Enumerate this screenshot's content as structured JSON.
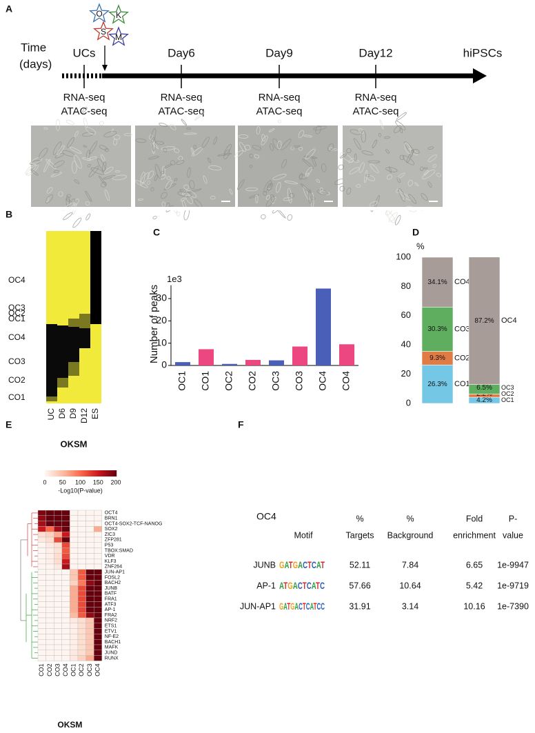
{
  "panel_labels": [
    "A",
    "B",
    "C",
    "D",
    "E",
    "F"
  ],
  "panel_a": {
    "time_label": [
      "Time",
      "(days)"
    ],
    "factors": [
      "O",
      "K",
      "S",
      "M"
    ],
    "stages": [
      {
        "label": "UCs",
        "assays": [
          "RNA-seq",
          "ATAC-seq"
        ]
      },
      {
        "label": "Day6",
        "assays": [
          "RNA-seq",
          "ATAC-seq"
        ]
      },
      {
        "label": "Day9",
        "assays": [
          "RNA-seq",
          "ATAC-seq"
        ]
      },
      {
        "label": "Day12",
        "assays": [
          "RNA-seq",
          "ATAC-seq"
        ]
      },
      {
        "label": "hiPSCs"
      }
    ]
  },
  "panel_b": {
    "rows": [
      "OC4",
      "OC3",
      "OC2",
      "OC1",
      "CO4",
      "CO3",
      "CO2",
      "CO1"
    ],
    "columns": [
      "UC",
      "D6",
      "D9",
      "D12",
      "ES"
    ],
    "xlabel": "OKSM"
  },
  "chart_data": [
    {
      "type": "bar",
      "ylabel": "Number of peaks",
      "y_scale_label": "1e3",
      "categories": [
        "OC1",
        "CO1",
        "OC2",
        "CO2",
        "OC3",
        "CO3",
        "OC4",
        "CO4"
      ],
      "values": [
        1.5,
        7.3,
        0.7,
        2.5,
        2.3,
        8.5,
        34.5,
        9.5
      ],
      "colors": [
        "#4a5fb8",
        "#ec4780",
        "#4a5fb8",
        "#ec4780",
        "#4a5fb8",
        "#ec4780",
        "#4a5fb8",
        "#ec4780"
      ],
      "ylim": [
        0,
        36
      ],
      "yticks": [
        0,
        10,
        20,
        30
      ]
    },
    {
      "type": "stacked_bar",
      "ylabel": "%",
      "ylim": [
        0,
        100
      ],
      "yticks": [
        0,
        20,
        40,
        60,
        80,
        100
      ],
      "bars": [
        {
          "segments": [
            {
              "name": "CO1",
              "value": 26.3,
              "value_label": "26.3%",
              "color": "#74c8e6"
            },
            {
              "name": "CO2",
              "value": 9.3,
              "value_label": "9.3%",
              "color": "#e07b45"
            },
            {
              "name": "CO3",
              "value": 30.3,
              "value_label": "30.3%",
              "color": "#5fae5f"
            },
            {
              "name": "CO4",
              "value": 34.1,
              "value_label": "34.1%",
              "color": "#a89c98"
            }
          ]
        },
        {
          "segments": [
            {
              "name": "OC1",
              "value": 4.2,
              "value_label": "4.2%",
              "color": "#74c8e6"
            },
            {
              "name": "OC2",
              "value": 2.2,
              "value_label": "2.2%",
              "color": "#e07b45"
            },
            {
              "name": "OC3",
              "value": 6.5,
              "value_label": "6.5%",
              "color": "#5fae5f"
            },
            {
              "name": "OC4",
              "value": 87.2,
              "value_label": "87.2%",
              "color": "#a89c98"
            }
          ]
        }
      ]
    },
    {
      "type": "heatmap",
      "xlabel": "OKSM",
      "colorbar_label": "-Log10(P-value)",
      "clim": [
        0,
        200
      ],
      "cticks": [
        0,
        50,
        100,
        150,
        200
      ],
      "colors": [
        "#fff5f0",
        "#fcbba1",
        "#fb6a4a",
        "#cb181d",
        "#67000d"
      ],
      "columns": [
        "CO1",
        "CO2",
        "CO3",
        "CO4",
        "OC1",
        "OC2",
        "OC3",
        "OC4"
      ],
      "rows": [
        "OCT4",
        "BRN1",
        "OCT4-SOX2-TCF-NANOG",
        "SOX2",
        "ZIC3",
        "ZFP281",
        "P53",
        "TBOX:SMAD",
        "VDR",
        "KLF3",
        "ZNF264",
        "JUN-AP1",
        "FOSL2",
        "BACH2",
        "JUNB",
        "BATF",
        "FRA1",
        "ATF3",
        "AP-1",
        "FRA2",
        "NRF2",
        "ETS1",
        "ETV1",
        "NF-E2",
        "BACH1",
        "MAFK",
        "JUND",
        "RUNX"
      ],
      "values": [
        [
          190,
          200,
          200,
          200,
          0,
          0,
          0,
          0
        ],
        [
          180,
          200,
          200,
          200,
          0,
          0,
          0,
          0
        ],
        [
          170,
          200,
          200,
          200,
          0,
          0,
          0,
          0
        ],
        [
          150,
          100,
          170,
          200,
          0,
          0,
          0,
          60
        ],
        [
          20,
          30,
          60,
          150,
          0,
          0,
          0,
          0
        ],
        [
          10,
          20,
          120,
          200,
          0,
          0,
          0,
          0
        ],
        [
          0,
          10,
          20,
          120,
          0,
          0,
          0,
          0
        ],
        [
          0,
          5,
          15,
          110,
          0,
          0,
          0,
          0
        ],
        [
          0,
          5,
          20,
          120,
          0,
          0,
          0,
          0
        ],
        [
          0,
          5,
          20,
          150,
          0,
          0,
          0,
          0
        ],
        [
          0,
          0,
          10,
          170,
          0,
          0,
          0,
          0
        ],
        [
          0,
          0,
          0,
          0,
          40,
          110,
          200,
          200
        ],
        [
          0,
          0,
          0,
          0,
          40,
          110,
          200,
          200
        ],
        [
          0,
          0,
          0,
          0,
          30,
          90,
          180,
          200
        ],
        [
          0,
          0,
          0,
          0,
          60,
          120,
          200,
          200
        ],
        [
          0,
          0,
          0,
          0,
          60,
          120,
          200,
          200
        ],
        [
          0,
          0,
          0,
          0,
          60,
          120,
          200,
          200
        ],
        [
          0,
          0,
          0,
          0,
          60,
          120,
          200,
          200
        ],
        [
          0,
          0,
          0,
          0,
          60,
          120,
          200,
          200
        ],
        [
          0,
          0,
          0,
          0,
          50,
          110,
          180,
          200
        ],
        [
          0,
          0,
          0,
          0,
          10,
          20,
          40,
          200
        ],
        [
          0,
          0,
          0,
          0,
          5,
          20,
          40,
          200
        ],
        [
          0,
          0,
          0,
          0,
          5,
          20,
          40,
          200
        ],
        [
          0,
          0,
          0,
          0,
          5,
          20,
          40,
          200
        ],
        [
          0,
          0,
          0,
          0,
          5,
          20,
          40,
          200
        ],
        [
          0,
          0,
          0,
          0,
          5,
          20,
          40,
          200
        ],
        [
          0,
          0,
          0,
          0,
          10,
          20,
          40,
          200
        ],
        [
          0,
          0,
          0,
          0,
          10,
          30,
          60,
          200
        ]
      ]
    }
  ],
  "panel_f": {
    "title": "OC4",
    "headers": [
      [
        "Motif"
      ],
      [
        "%",
        "Targets"
      ],
      [
        "%",
        "Background"
      ],
      [
        "Fold",
        "enrichment"
      ],
      [
        "P-",
        "value"
      ]
    ],
    "rows": [
      {
        "name": "JUNB",
        "motif": "GATGACTCAT",
        "targets": "52.11",
        "background": "7.84",
        "fold": "6.65",
        "pvalue": "1e-9947"
      },
      {
        "name": "AP-1",
        "motif": "ATGACTCATC",
        "targets": "57.66",
        "background": "10.64",
        "fold": "5.42",
        "pvalue": "1e-9719"
      },
      {
        "name": "JUN-AP1",
        "motif": "GATGACTCATCC",
        "targets": "31.91",
        "background": "3.14",
        "fold": "10.16",
        "pvalue": "1e-7390"
      }
    ]
  }
}
